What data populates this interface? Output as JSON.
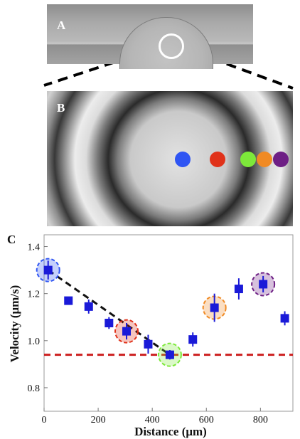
{
  "panels": {
    "a": "A",
    "b": "B",
    "c": "C"
  },
  "marker_colors": [
    "#2f55f3",
    "#e0321a",
    "#7de83a",
    "#f08a24",
    "#6e1f85"
  ],
  "chart_data": {
    "type": "scatter",
    "title": "",
    "xlabel": "Distance (μm)",
    "ylabel": "Velocity (μm/s)",
    "xlim": [
      0,
      920
    ],
    "ylim": [
      0.7,
      1.45
    ],
    "xticks": [
      0,
      200,
      400,
      600,
      800
    ],
    "yticks": [
      0.8,
      1.0,
      1.2,
      1.4
    ],
    "grid": false,
    "series": [
      {
        "values": [
          {
            "x": 15,
            "y": 1.3,
            "err": 0.04
          },
          {
            "x": 90,
            "y": 1.17,
            "err": 0.015
          },
          {
            "x": 165,
            "y": 1.145,
            "err": 0.03
          },
          {
            "x": 240,
            "y": 1.075,
            "err": 0.025
          },
          {
            "x": 305,
            "y": 1.04,
            "err": 0.035
          },
          {
            "x": 385,
            "y": 0.985,
            "err": 0.04
          },
          {
            "x": 465,
            "y": 0.94,
            "err": 0.02
          },
          {
            "x": 550,
            "y": 1.005,
            "err": 0.03
          },
          {
            "x": 630,
            "y": 1.14,
            "err": 0.06
          },
          {
            "x": 720,
            "y": 1.22,
            "err": 0.045
          },
          {
            "x": 810,
            "y": 1.24,
            "err": 0.035
          },
          {
            "x": 890,
            "y": 1.095,
            "err": 0.03
          }
        ],
        "color": "#1a1ad8"
      }
    ],
    "reference_line": {
      "y": 0.94,
      "color": "#cc1f1f",
      "style": "dashed"
    },
    "trend_line": {
      "points": [
        {
          "x": 15,
          "y": 1.3
        },
        {
          "x": 465,
          "y": 0.94
        }
      ],
      "color": "#111111",
      "style": "dashed"
    },
    "highlight_circles": [
      {
        "x": 15,
        "y": 1.3,
        "color": "#2f55f3"
      },
      {
        "x": 305,
        "y": 1.04,
        "color": "#e0321a"
      },
      {
        "x": 465,
        "y": 0.94,
        "color": "#7de83a"
      },
      {
        "x": 630,
        "y": 1.14,
        "color": "#f08a24"
      },
      {
        "x": 810,
        "y": 1.24,
        "color": "#6e1f85"
      }
    ]
  }
}
